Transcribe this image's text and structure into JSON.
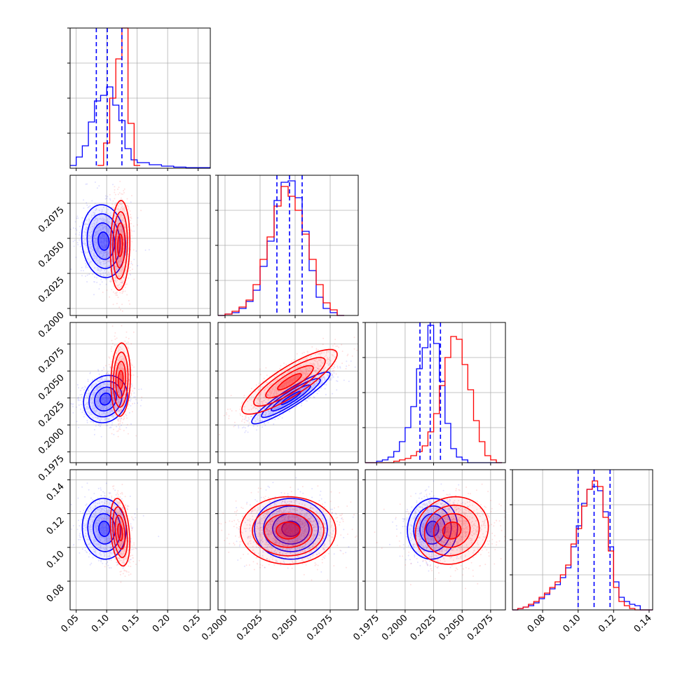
{
  "figure": {
    "type": "corner-plot",
    "colors": {
      "series_a": "#0000ff",
      "series_b": "#ff0000",
      "grid": "#b0b0b0"
    },
    "grid": true
  },
  "chart_data": [
    {
      "type": "histogram",
      "panel": "diag-0",
      "xlim": [
        0.04,
        0.27
      ],
      "x_ticks": [
        0.05,
        0.1,
        0.15,
        0.2,
        0.25
      ],
      "x_tick_labels": [
        "0.05",
        "0.10",
        "0.15",
        "0.20",
        "0.25"
      ],
      "y_ticks": [
        0.25,
        0.5,
        0.75,
        1.0
      ],
      "y_tick_labels": [
        "",
        "",
        "",
        ""
      ],
      "series": [
        {
          "color": "#0000ff",
          "bin_edges": [
            0.04,
            0.05,
            0.06,
            0.07,
            0.08,
            0.09,
            0.1,
            0.11,
            0.12,
            0.13,
            0.14,
            0.15,
            0.17,
            0.19,
            0.21,
            0.23,
            0.27
          ],
          "counts": [
            0.02,
            0.08,
            0.16,
            0.33,
            0.48,
            0.52,
            0.58,
            0.45,
            0.34,
            0.14,
            0.06,
            0.04,
            0.025,
            0.015,
            0.008,
            0.004
          ]
        },
        {
          "color": "#ff0000",
          "bin_edges": [
            0.085,
            0.095,
            0.105,
            0.115,
            0.125,
            0.135,
            0.145,
            0.155
          ],
          "counts": [
            0.02,
            0.18,
            0.5,
            0.78,
            1.0,
            0.32,
            0.02
          ]
        }
      ],
      "quantile_lines": [
        0.083,
        0.101,
        0.125
      ]
    },
    {
      "type": "histogram",
      "panel": "diag-1",
      "xlim": [
        0.1995,
        0.2095
      ],
      "x_ticks": [
        0.2,
        0.2025,
        0.205,
        0.2075
      ],
      "x_tick_labels": [
        "0.2000",
        "0.2025",
        "0.2050",
        "0.2075"
      ],
      "y_ticks": [
        0.25,
        0.5,
        0.75,
        1.0
      ],
      "y_tick_labels": [
        "",
        "",
        "",
        ""
      ],
      "series": [
        {
          "color": "#0000ff",
          "bin_edges": [
            0.1995,
            0.2,
            0.2005,
            0.201,
            0.2015,
            0.202,
            0.2025,
            0.203,
            0.2035,
            0.204,
            0.2045,
            0.205,
            0.2055,
            0.206,
            0.2065,
            0.207,
            0.2075,
            0.208,
            0.2085
          ],
          "counts": [
            0.0,
            0.01,
            0.02,
            0.05,
            0.1,
            0.18,
            0.35,
            0.53,
            0.82,
            0.95,
            0.96,
            0.84,
            0.6,
            0.32,
            0.13,
            0.05,
            0.02,
            0.0
          ]
        },
        {
          "color": "#ff0000",
          "bin_edges": [
            0.1995,
            0.2,
            0.2005,
            0.201,
            0.2015,
            0.202,
            0.2025,
            0.203,
            0.2035,
            0.204,
            0.2045,
            0.205,
            0.2055,
            0.206,
            0.2065,
            0.207,
            0.2075,
            0.208,
            0.2085
          ],
          "counts": [
            0.0,
            0.01,
            0.03,
            0.06,
            0.11,
            0.22,
            0.4,
            0.56,
            0.78,
            0.92,
            0.85,
            0.75,
            0.58,
            0.4,
            0.22,
            0.09,
            0.04,
            0.0
          ]
        }
      ],
      "quantile_lines": [
        0.2037,
        0.2046,
        0.2055
      ]
    },
    {
      "type": "histogram",
      "panel": "diag-2",
      "xlim": [
        0.1965,
        0.2088
      ],
      "x_ticks": [
        0.1975,
        0.2,
        0.2025,
        0.205,
        0.2075
      ],
      "x_tick_labels": [
        "0.1975",
        "0.2000",
        "0.2025",
        "0.2050",
        "0.2075"
      ],
      "y_ticks": [
        0.25,
        0.5,
        0.75,
        1.0
      ],
      "y_tick_labels": [
        "",
        "",
        "",
        ""
      ],
      "series": [
        {
          "color": "#0000ff",
          "bin_edges": [
            0.1965,
            0.197,
            0.1975,
            0.198,
            0.1985,
            0.199,
            0.1995,
            0.2,
            0.2005,
            0.201,
            0.2015,
            0.202,
            0.2025,
            0.203,
            0.2035,
            0.204,
            0.2045,
            0.205,
            0.2055,
            0.206,
            0.2065,
            0.207,
            0.2075,
            0.208,
            0.2085
          ],
          "counts": [
            0.0,
            0.0,
            0.01,
            0.02,
            0.04,
            0.08,
            0.15,
            0.25,
            0.4,
            0.67,
            0.82,
            0.98,
            0.85,
            0.58,
            0.28,
            0.1,
            0.04,
            0.02,
            0.0,
            0.0,
            0.0,
            0.0,
            0.0,
            0.0
          ]
        },
        {
          "color": "#ff0000",
          "bin_edges": [
            0.1965,
            0.197,
            0.1975,
            0.198,
            0.1985,
            0.199,
            0.1995,
            0.2,
            0.2005,
            0.201,
            0.2015,
            0.202,
            0.2025,
            0.203,
            0.2035,
            0.204,
            0.2045,
            0.205,
            0.2055,
            0.206,
            0.2065,
            0.207,
            0.2075,
            0.208,
            0.2085
          ],
          "counts": [
            0.0,
            0.0,
            0.0,
            0.0,
            0.0,
            0.01,
            0.02,
            0.03,
            0.05,
            0.08,
            0.12,
            0.22,
            0.35,
            0.55,
            0.75,
            0.9,
            0.88,
            0.7,
            0.52,
            0.3,
            0.15,
            0.05,
            0.02,
            0.0
          ]
        }
      ],
      "quantile_lines": [
        0.2013,
        0.2022,
        0.2031
      ]
    },
    {
      "type": "histogram",
      "panel": "diag-3",
      "xlim": [
        0.063,
        0.142
      ],
      "x_ticks": [
        0.08,
        0.1,
        0.12,
        0.14
      ],
      "x_tick_labels": [
        "0.08",
        "0.10",
        "0.12",
        "0.14"
      ],
      "y_ticks": [
        0.25,
        0.5,
        0.75,
        1.0
      ],
      "y_tick_labels": [
        "",
        "",
        "",
        ""
      ],
      "series": [
        {
          "color": "#0000ff",
          "bin_edges": [
            0.063,
            0.066,
            0.069,
            0.072,
            0.075,
            0.078,
            0.081,
            0.084,
            0.087,
            0.09,
            0.093,
            0.096,
            0.099,
            0.102,
            0.105,
            0.108,
            0.111,
            0.114,
            0.117,
            0.12,
            0.123,
            0.126,
            0.129,
            0.132,
            0.135,
            0.138,
            0.142
          ],
          "counts": [
            0.0,
            0.01,
            0.02,
            0.03,
            0.05,
            0.08,
            0.11,
            0.15,
            0.18,
            0.23,
            0.3,
            0.45,
            0.6,
            0.76,
            0.86,
            0.88,
            0.85,
            0.7,
            0.45,
            0.2,
            0.09,
            0.06,
            0.04,
            0.03,
            0.0,
            0.0
          ]
        },
        {
          "color": "#ff0000",
          "bin_edges": [
            0.063,
            0.066,
            0.069,
            0.072,
            0.075,
            0.078,
            0.081,
            0.084,
            0.087,
            0.09,
            0.093,
            0.096,
            0.099,
            0.102,
            0.105,
            0.108,
            0.111,
            0.114,
            0.117,
            0.12,
            0.123,
            0.126,
            0.129,
            0.132,
            0.135,
            0.138,
            0.142
          ],
          "counts": [
            0.0,
            0.01,
            0.02,
            0.04,
            0.06,
            0.09,
            0.12,
            0.16,
            0.2,
            0.25,
            0.32,
            0.47,
            0.58,
            0.74,
            0.86,
            0.92,
            0.88,
            0.66,
            0.42,
            0.16,
            0.06,
            0.03,
            0.01,
            0.0,
            0.0,
            0.0
          ]
        }
      ],
      "quantile_lines": [
        0.1,
        0.109,
        0.118
      ]
    },
    {
      "type": "scatter",
      "panel": "r1c0",
      "xlim": [
        0.04,
        0.27
      ],
      "ylim": [
        0.1995,
        0.2095
      ],
      "y_ticks": [
        0.2,
        0.2025,
        0.205,
        0.2075
      ],
      "y_tick_labels": [
        "0.2000",
        "0.2025",
        "0.2050",
        "0.2075"
      ],
      "series": [
        {
          "color": "#0000ff",
          "center": [
            0.095,
            0.2048
          ],
          "sd": [
            0.018,
            0.0013
          ],
          "rho": -0.1
        },
        {
          "color": "#ff0000",
          "center": [
            0.122,
            0.2045
          ],
          "sd": [
            0.008,
            0.0016
          ],
          "rho": 0.1
        }
      ]
    },
    {
      "type": "scatter",
      "panel": "r2c0",
      "xlim": [
        0.04,
        0.27
      ],
      "ylim": [
        0.1965,
        0.2095
      ],
      "y_ticks": [
        0.1975,
        0.2,
        0.2025,
        0.205,
        0.2075
      ],
      "y_tick_labels": [
        "0.1975",
        "0.2000",
        "0.2025",
        "0.2050",
        "0.2075"
      ],
      "series": [
        {
          "color": "#0000ff",
          "center": [
            0.098,
            0.2024
          ],
          "sd": [
            0.018,
            0.0011
          ],
          "rho": 0.15
        },
        {
          "color": "#ff0000",
          "center": [
            0.123,
            0.2042
          ],
          "sd": [
            0.008,
            0.0017
          ],
          "rho": 0.1
        }
      ]
    },
    {
      "type": "scatter",
      "panel": "r2c1",
      "xlim": [
        0.1995,
        0.2095
      ],
      "ylim": [
        0.1965,
        0.2095
      ],
      "series": [
        {
          "color": "#0000ff",
          "center": [
            0.2047,
            0.2025
          ],
          "sd": [
            0.0014,
            0.0012
          ],
          "rho": 0.92
        },
        {
          "color": "#ff0000",
          "center": [
            0.2046,
            0.204
          ],
          "sd": [
            0.0017,
            0.0015
          ],
          "rho": 0.85
        }
      ]
    },
    {
      "type": "scatter",
      "panel": "r3c0",
      "xlim": [
        0.04,
        0.27
      ],
      "ylim": [
        0.063,
        0.146
      ],
      "y_ticks": [
        0.08,
        0.1,
        0.12,
        0.14
      ],
      "y_tick_labels": [
        "0.08",
        "0.10",
        "0.12",
        "0.14"
      ],
      "series": [
        {
          "color": "#0000ff",
          "center": [
            0.096,
            0.111
          ],
          "sd": [
            0.018,
            0.009
          ],
          "rho": -0.05
        },
        {
          "color": "#ff0000",
          "center": [
            0.122,
            0.109
          ],
          "sd": [
            0.008,
            0.01
          ],
          "rho": -0.3
        }
      ]
    },
    {
      "type": "scatter",
      "panel": "r3c1",
      "xlim": [
        0.1995,
        0.2095
      ],
      "ylim": [
        0.063,
        0.146
      ],
      "series": [
        {
          "color": "#0000ff",
          "center": [
            0.2047,
            0.111
          ],
          "sd": [
            0.0013,
            0.009
          ],
          "rho": 0.0
        },
        {
          "color": "#ff0000",
          "center": [
            0.2045,
            0.11
          ],
          "sd": [
            0.0017,
            0.01
          ],
          "rho": 0.0
        }
      ]
    },
    {
      "type": "scatter",
      "panel": "r3c2",
      "xlim": [
        0.1965,
        0.2088
      ],
      "ylim": [
        0.063,
        0.146
      ],
      "series": [
        {
          "color": "#0000ff",
          "center": [
            0.2024,
            0.111
          ],
          "sd": [
            0.0011,
            0.009
          ],
          "rho": 0.05
        },
        {
          "color": "#ff0000",
          "center": [
            0.2041,
            0.11
          ],
          "sd": [
            0.0016,
            0.01
          ],
          "rho": 0.1
        }
      ]
    }
  ]
}
